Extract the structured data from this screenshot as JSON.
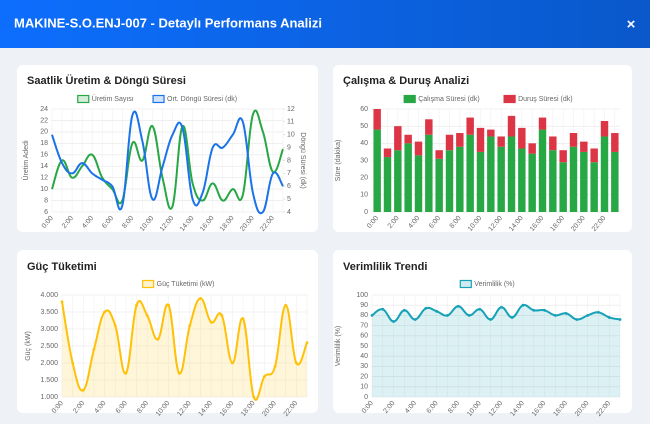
{
  "header": {
    "title": "MAKINE-S.O.ENJ-007 - Detaylı Performans Analizi",
    "close": "×"
  },
  "chart_data": [
    {
      "type": "line",
      "title": "Saatlik Üretim & Döngü Süresi",
      "categories": [
        "0:00",
        null,
        "2:00",
        null,
        "4:00",
        null,
        "6:00",
        null,
        "8:00",
        null,
        "10:00",
        null,
        "12:00",
        null,
        "14:00",
        null,
        "16:00",
        null,
        "18:00",
        null,
        "20:00",
        null,
        "22:00",
        null
      ],
      "ylabel": "Üretim Adedi",
      "y2label": "Döngü Süresi (dk)",
      "ylim": [
        6,
        24
      ],
      "yticks": [
        6,
        8,
        10,
        12,
        14,
        16,
        18,
        20,
        22,
        24
      ],
      "y2lim": [
        4,
        12
      ],
      "y2ticks": [
        4,
        5,
        6,
        7,
        8,
        9,
        10,
        11,
        12
      ],
      "grid": true,
      "legend": "top",
      "series": [
        {
          "name": "Üretim Sayısı",
          "color": "#28a745",
          "values": [
            10,
            15,
            12,
            14,
            16,
            12,
            10,
            8,
            18,
            15,
            21,
            12,
            7,
            21,
            11,
            8,
            11,
            8,
            10,
            9,
            23,
            20,
            13,
            17
          ]
        },
        {
          "name": "Ort. Döngü Süresi (dk)",
          "color": "#1a73e8",
          "axis": "y2",
          "values": [
            10,
            7.8,
            7,
            7.8,
            7,
            6.5,
            6,
            4.5,
            11.5,
            9.5,
            5,
            7.5,
            10,
            10.5,
            5,
            5.5,
            9,
            9,
            10,
            11,
            5.5,
            4,
            7,
            6
          ]
        }
      ]
    },
    {
      "type": "stacked_bar",
      "title": "Çalışma & Duruş Analizi",
      "categories": [
        "0:00",
        null,
        "2:00",
        null,
        "4:00",
        null,
        "6:00",
        null,
        "8:00",
        null,
        "10:00",
        null,
        "12:00",
        null,
        "14:00",
        null,
        "16:00",
        null,
        "18:00",
        null,
        "20:00",
        null,
        "22:00",
        null
      ],
      "ylabel": "Süre (dakika)",
      "ylim": [
        0,
        60
      ],
      "yticks": [
        0,
        10,
        20,
        30,
        40,
        50,
        60
      ],
      "grid": true,
      "legend": "top",
      "series": [
        {
          "name": "Çalışma Süresi (dk)",
          "color": "#28a745",
          "values": [
            48,
            32,
            36,
            40,
            33,
            45,
            31,
            36,
            38,
            45,
            35,
            44,
            38,
            44,
            37,
            34,
            48,
            36,
            29,
            38,
            35,
            29,
            44,
            35
          ]
        },
        {
          "name": "Duruş Süresi (dk)",
          "color": "#dc3545",
          "values": [
            12,
            5,
            14,
            5,
            8,
            9,
            5,
            9,
            8,
            10,
            14,
            4,
            6,
            12,
            12,
            6,
            7,
            8,
            7,
            8,
            6,
            8,
            9,
            11
          ]
        }
      ]
    },
    {
      "type": "area",
      "title": "Güç Tüketimi",
      "categories": [
        "0:00",
        null,
        "2:00",
        null,
        "4:00",
        null,
        "6:00",
        null,
        "8:00",
        null,
        "10:00",
        null,
        "12:00",
        null,
        "14:00",
        null,
        "16:00",
        null,
        "18:00",
        null,
        "20:00",
        null,
        "22:00",
        null
      ],
      "ylabel": "Güç (kW)",
      "ylim": [
        1000,
        4000
      ],
      "yticks": [
        {
          "value": 1000,
          "label": "1.000"
        },
        {
          "value": 1500,
          "label": "1.500"
        },
        {
          "value": 2000,
          "label": "2.000"
        },
        {
          "value": 2500,
          "label": "2.500"
        },
        {
          "value": 3000,
          "label": "3.000"
        },
        {
          "value": 3500,
          "label": "3.500"
        },
        {
          "value": 4000,
          "label": "4.000"
        }
      ],
      "grid": true,
      "legend": "top",
      "series": [
        {
          "name": "Güç Tüketimi (kW)",
          "color": "#ffc107",
          "values": [
            3800,
            2000,
            1200,
            2400,
            3500,
            3100,
            1700,
            3700,
            3400,
            2700,
            3700,
            1700,
            3100,
            3900,
            3200,
            3400,
            2000,
            3300,
            1000,
            1600,
            1900,
            3700,
            2000,
            2600
          ]
        }
      ]
    },
    {
      "type": "area",
      "title": "Verimlilik Trendi",
      "categories": [
        "0:00",
        null,
        "2:00",
        null,
        "4:00",
        null,
        "6:00",
        null,
        "8:00",
        null,
        "10:00",
        null,
        "12:00",
        null,
        "14:00",
        null,
        "16:00",
        null,
        "18:00",
        null,
        "20:00",
        null,
        "22:00",
        null
      ],
      "ylabel": "Verimlilik (%)",
      "ylim": [
        0,
        100
      ],
      "yticks": [
        0,
        10,
        20,
        30,
        40,
        50,
        60,
        70,
        80,
        90,
        100
      ],
      "grid": true,
      "legend": "top",
      "series": [
        {
          "name": "Verimlilik (%)",
          "color": "#17a2b8",
          "values": [
            80,
            86,
            74,
            85,
            76,
            87,
            84,
            80,
            89,
            80,
            86,
            76,
            88,
            78,
            90,
            85,
            85,
            80,
            82,
            76,
            80,
            83,
            78,
            76
          ]
        }
      ]
    }
  ]
}
